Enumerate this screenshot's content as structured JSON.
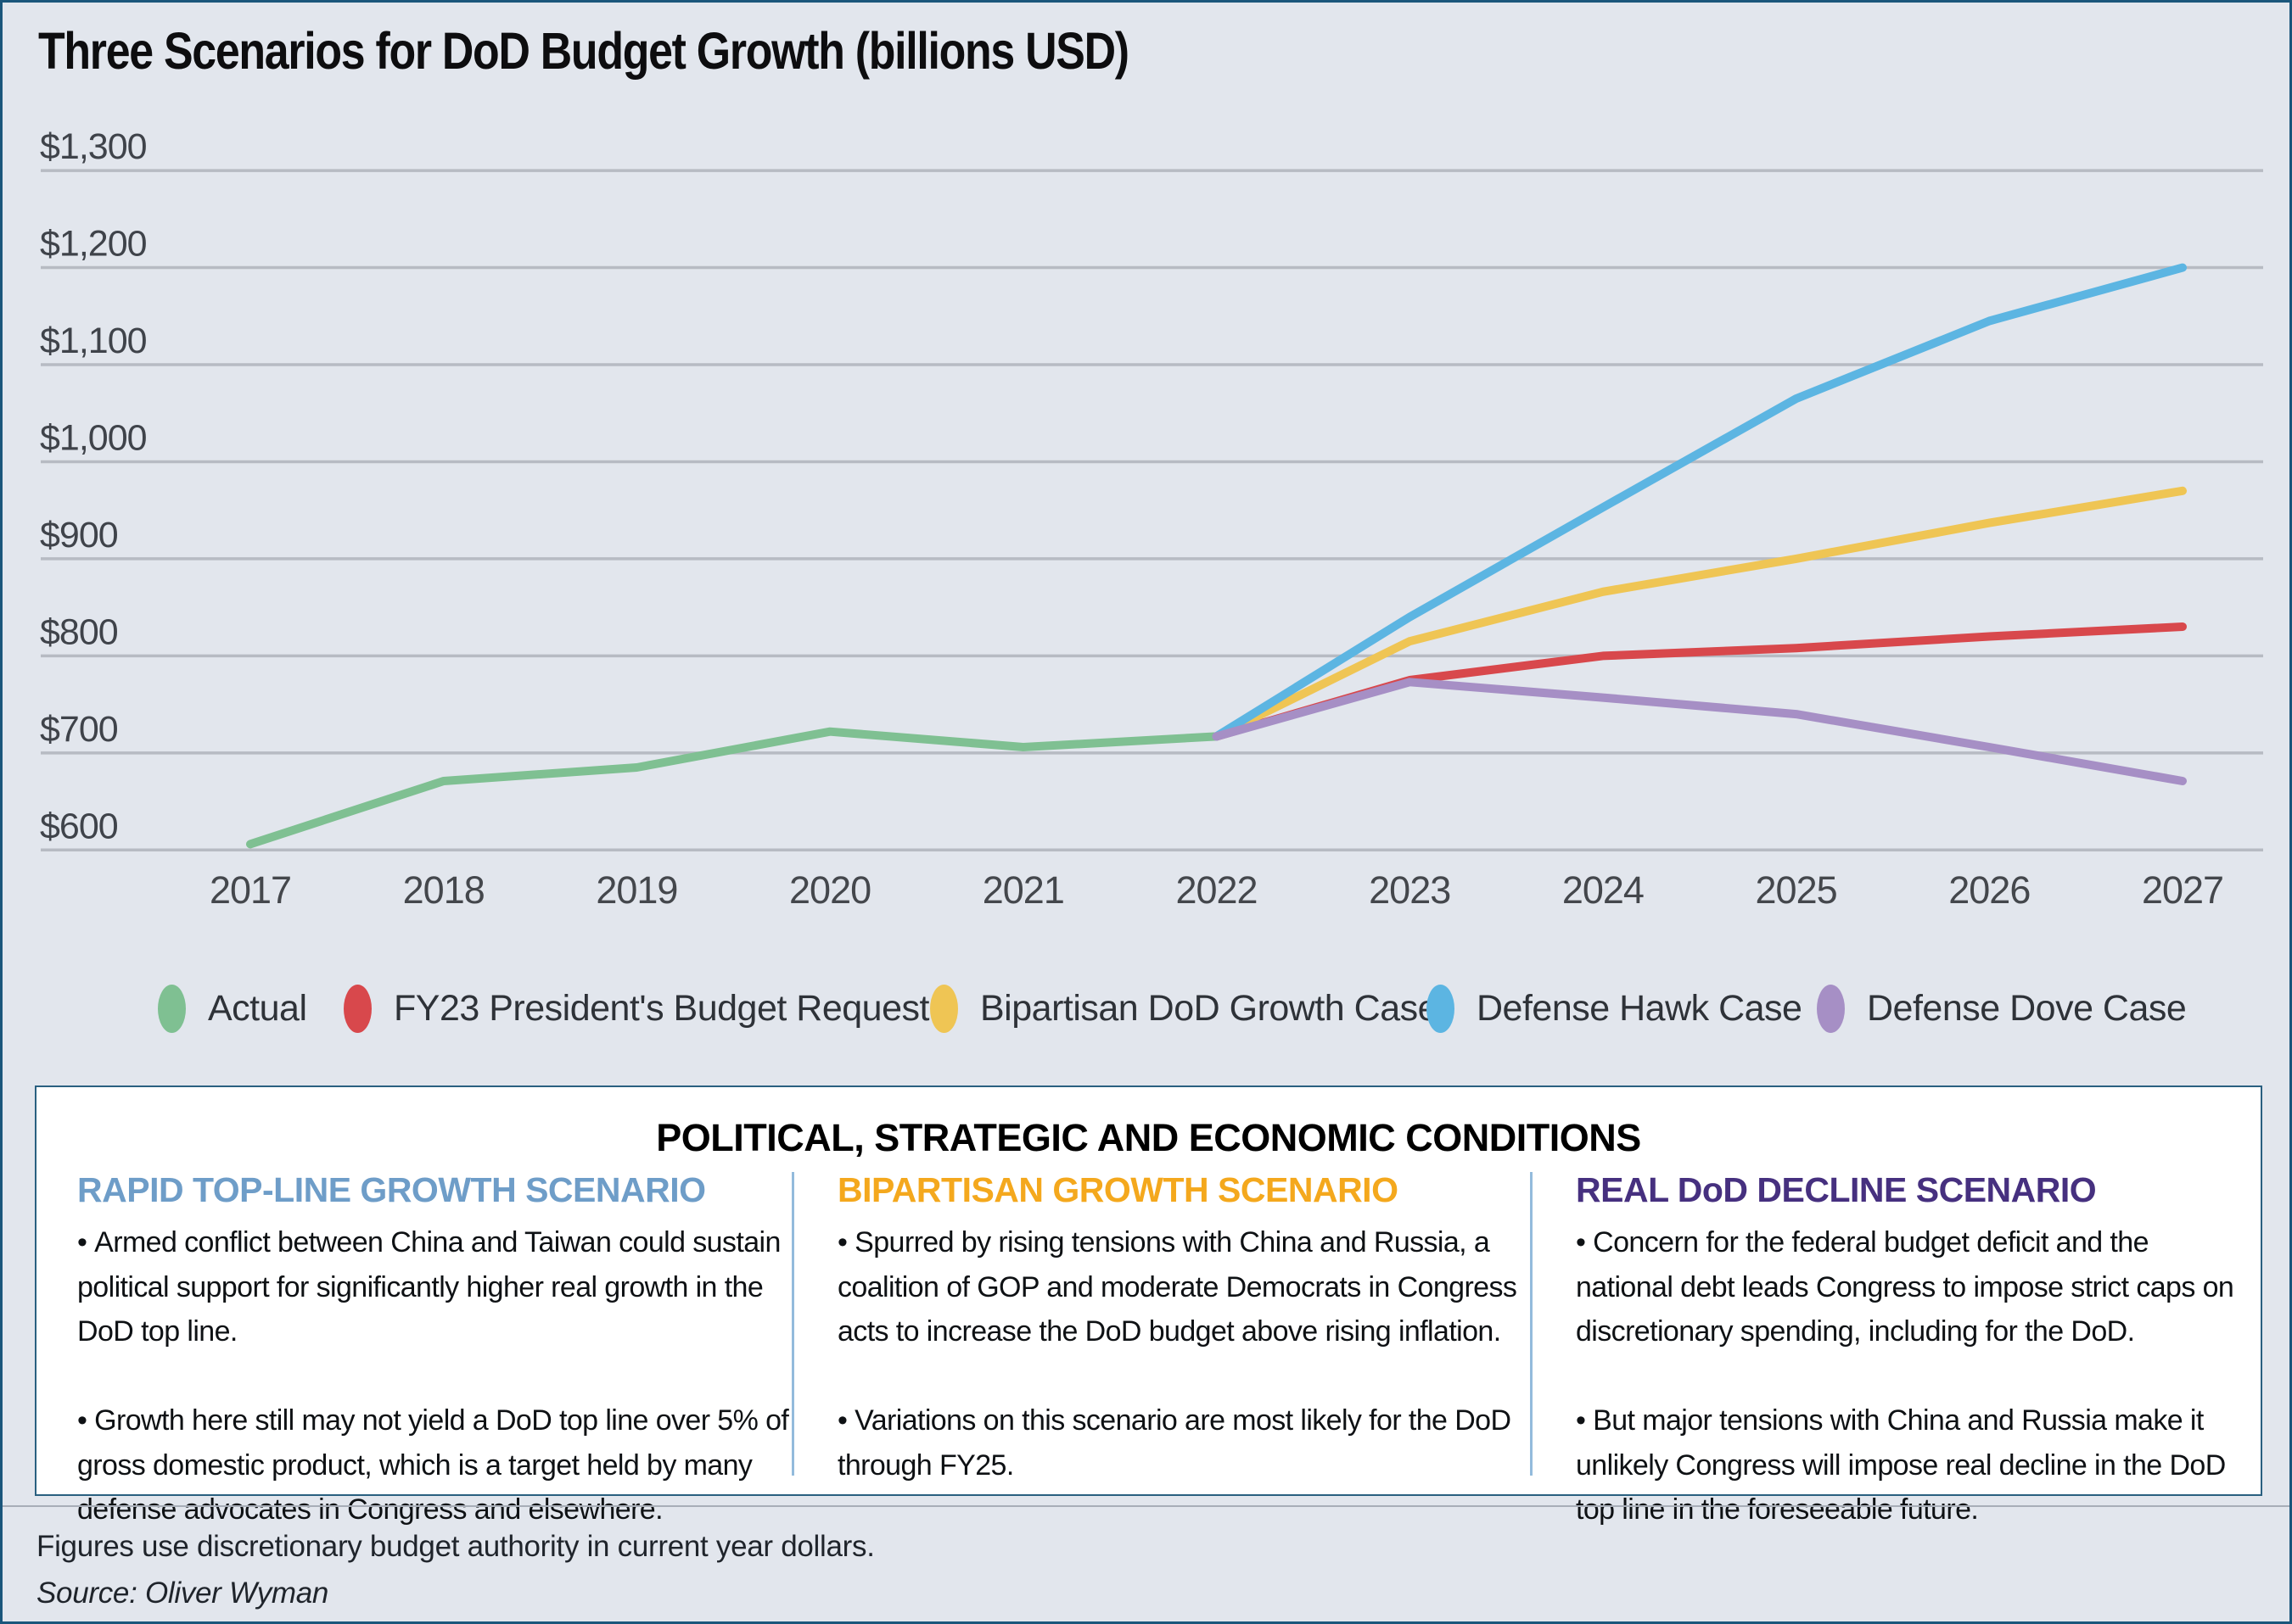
{
  "chart_data": {
    "type": "line",
    "title": "Three Scenarios for DoD Budget Growth (billions USD)",
    "categories": [
      2017,
      2018,
      2019,
      2020,
      2021,
      2022,
      2023,
      2024,
      2025,
      2026,
      2027
    ],
    "ylim": [
      600,
      1300
    ],
    "yticks": [
      1300,
      1200,
      1100,
      1000,
      900,
      800,
      700,
      600
    ],
    "ytick_labels": [
      "$1,300",
      "$1,200",
      "$1,100",
      "$1,000",
      "$900",
      "$800",
      "$700",
      "$600"
    ],
    "grid": true,
    "legend_position": "bottom",
    "series": [
      {
        "name": "Actual",
        "color": "#7FC092",
        "values": [
          606,
          671,
          685,
          722,
          706,
          717,
          null,
          null,
          null,
          null,
          null
        ]
      },
      {
        "name": "FY23 President's Budget Request",
        "color": "#D8484C",
        "values": [
          null,
          null,
          null,
          null,
          null,
          717,
          775,
          800,
          808,
          820,
          830
        ]
      },
      {
        "name": "Bipartisan DoD Growth Case",
        "color": "#EFC554",
        "values": [
          null,
          null,
          null,
          null,
          null,
          717,
          815,
          866,
          900,
          937,
          970
        ]
      },
      {
        "name": "Defense Hawk Case",
        "color": "#5CB5E2",
        "values": [
          null,
          null,
          null,
          null,
          null,
          717,
          840,
          953,
          1065,
          1145,
          1200
        ]
      },
      {
        "name": "Defense Dove Case",
        "color": "#A68FC5",
        "values": [
          null,
          null,
          null,
          null,
          null,
          717,
          773,
          757,
          740,
          706,
          671
        ]
      }
    ]
  },
  "conditions_panel": {
    "title": "POLITICAL, STRATEGIC AND ECONOMIC CONDITIONS",
    "columns": [
      {
        "heading": "RAPID TOP-LINE GROWTH SCENARIO",
        "heading_color": "#6E9DC8",
        "bullets": [
          "Armed conflict between China and Taiwan could sustain political support for significantly higher real growth in the DoD top line.",
          "Growth here still may not yield a DoD top line over 5% of gross domestic product, which is a target held by many defense advocates in Congress and elsewhere."
        ]
      },
      {
        "heading": "BIPARTISAN GROWTH SCENARIO",
        "heading_color": "#F4A81D",
        "bullets": [
          "Spurred by rising tensions with China and Russia, a coalition of GOP and moderate Democrats in Congress acts to increase the DoD budget above rising inflation.",
          "Variations on this scenario are most likely for the DoD through FY25."
        ]
      },
      {
        "heading": "REAL DoD DECLINE SCENARIO",
        "heading_color": "#46307F",
        "bullets": [
          "Concern for the federal budget deficit and the national debt leads Congress to impose strict caps on discretionary spending, including for the DoD.",
          "But major tensions with China and Russia make it unlikely Congress will impose real decline in the DoD top line in the foreseeable future."
        ]
      }
    ]
  },
  "footer": {
    "note": "Figures use discretionary budget authority in current year dollars.",
    "source": "Source: Oliver Wyman"
  }
}
